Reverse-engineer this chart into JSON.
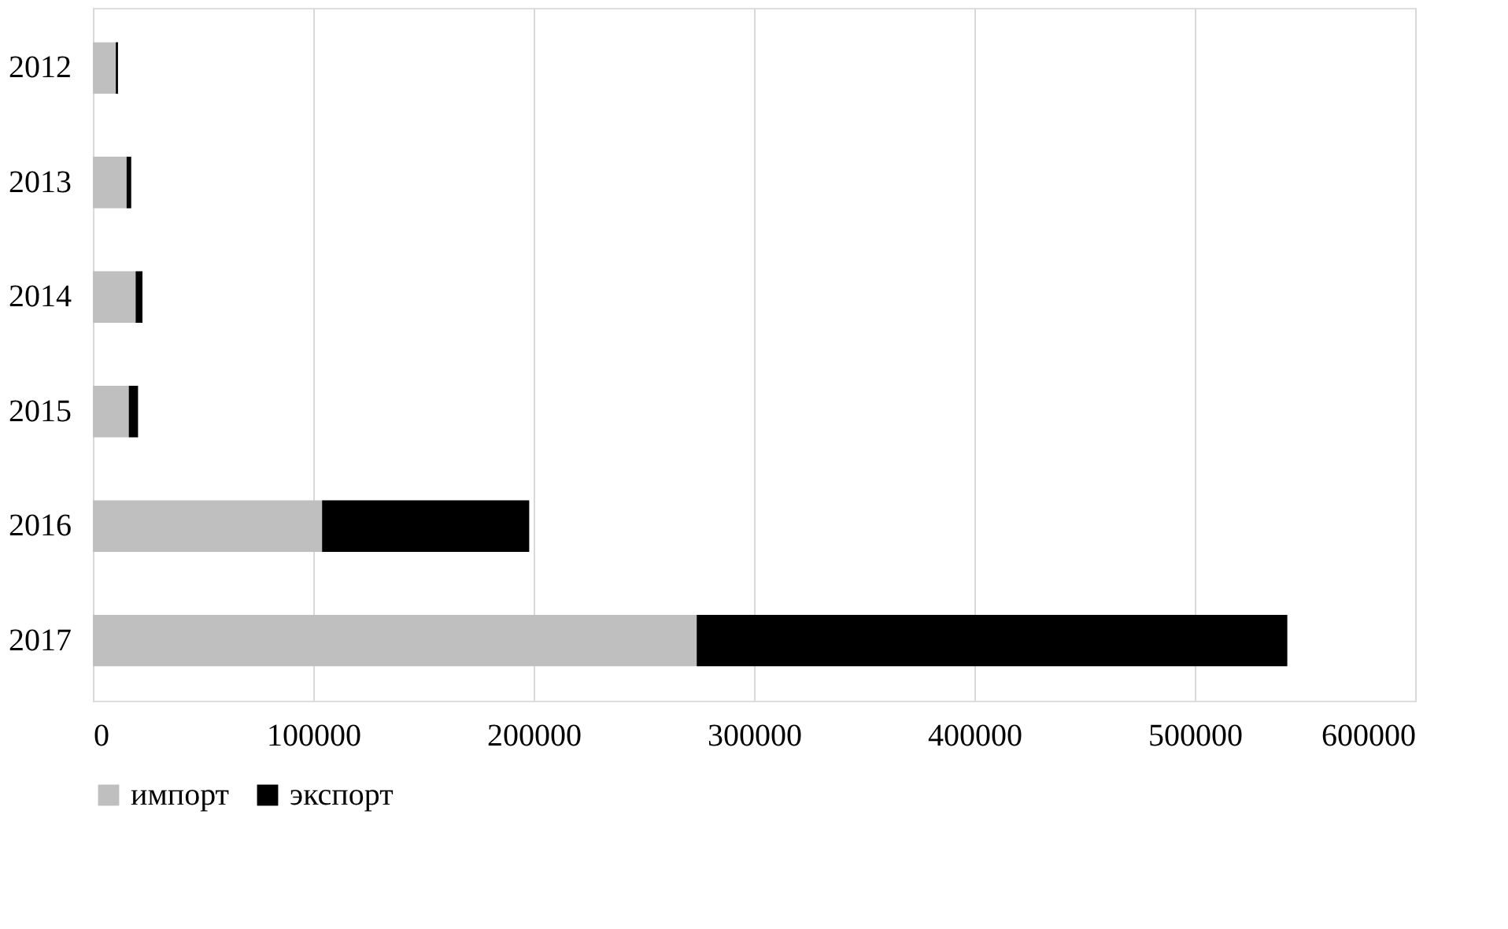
{
  "chart_data": {
    "type": "bar",
    "orientation": "horizontal",
    "stacked": true,
    "categories": [
      "2012",
      "2013",
      "2014",
      "2015",
      "2016",
      "2017"
    ],
    "series": [
      {
        "name": "импорт",
        "color": "#bfbfbf",
        "values": [
          10400,
          15300,
          19400,
          16300,
          104000,
          274000
        ]
      },
      {
        "name": "экспорт",
        "color": "#000000",
        "values": [
          1000,
          2100,
          3100,
          4200,
          94000,
          268000
        ]
      }
    ],
    "xlim": [
      0,
      600000
    ],
    "xticks": [
      0,
      100000,
      200000,
      300000,
      400000,
      500000,
      600000
    ],
    "grid": "x",
    "legend": "bottom"
  }
}
